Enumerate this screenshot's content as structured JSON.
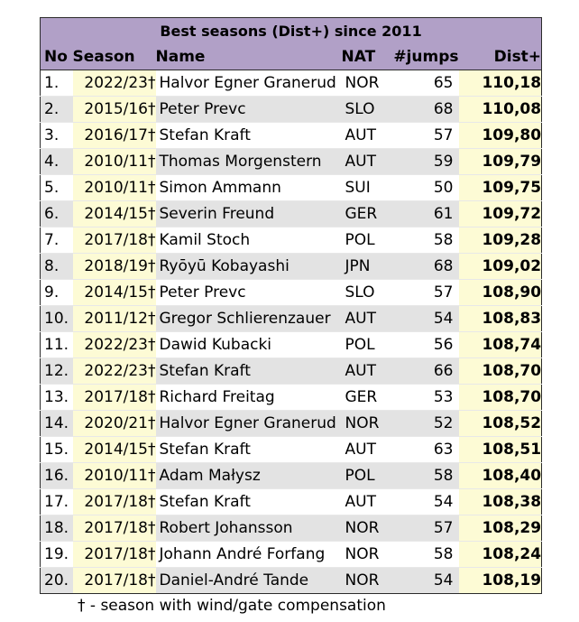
{
  "title": "Best seasons (Dist+) since 2011",
  "headers": {
    "no": "No",
    "season": "Season",
    "name": "Name",
    "nat": "NAT",
    "jumps": "#jumps",
    "dist": "Dist+"
  },
  "rows": [
    {
      "no": "1.",
      "season": "2022/23†",
      "name": "Halvor Egner Granerud",
      "nat": "NOR",
      "jumps": "65",
      "dist": "110,18"
    },
    {
      "no": "2.",
      "season": "2015/16†",
      "name": "Peter Prevc",
      "nat": "SLO",
      "jumps": "68",
      "dist": "110,08"
    },
    {
      "no": "3.",
      "season": "2016/17†",
      "name": "Stefan Kraft",
      "nat": "AUT",
      "jumps": "57",
      "dist": "109,80"
    },
    {
      "no": "4.",
      "season": "2010/11†",
      "name": "Thomas Morgenstern",
      "nat": "AUT",
      "jumps": "59",
      "dist": "109,79"
    },
    {
      "no": "5.",
      "season": "2010/11†",
      "name": "Simon Ammann",
      "nat": "SUI",
      "jumps": "50",
      "dist": "109,75"
    },
    {
      "no": "6.",
      "season": "2014/15†",
      "name": "Severin Freund",
      "nat": "GER",
      "jumps": "61",
      "dist": "109,72"
    },
    {
      "no": "7.",
      "season": "2017/18†",
      "name": "Kamil Stoch",
      "nat": "POL",
      "jumps": "58",
      "dist": "109,28"
    },
    {
      "no": "8.",
      "season": "2018/19†",
      "name": "Ryōyū Kobayashi",
      "nat": "JPN",
      "jumps": "68",
      "dist": "109,02"
    },
    {
      "no": "9.",
      "season": "2014/15†",
      "name": "Peter Prevc",
      "nat": "SLO",
      "jumps": "57",
      "dist": "108,90"
    },
    {
      "no": "10.",
      "season": "2011/12†",
      "name": "Gregor Schlierenzauer",
      "nat": "AUT",
      "jumps": "54",
      "dist": "108,83"
    },
    {
      "no": "11.",
      "season": "2022/23†",
      "name": "Dawid Kubacki",
      "nat": "POL",
      "jumps": "56",
      "dist": "108,74"
    },
    {
      "no": "12.",
      "season": "2022/23†",
      "name": "Stefan Kraft",
      "nat": "AUT",
      "jumps": "66",
      "dist": "108,70"
    },
    {
      "no": "13.",
      "season": "2017/18†",
      "name": "Richard Freitag",
      "nat": "GER",
      "jumps": "53",
      "dist": "108,70"
    },
    {
      "no": "14.",
      "season": "2020/21†",
      "name": "Halvor Egner Granerud",
      "nat": "NOR",
      "jumps": "52",
      "dist": "108,52"
    },
    {
      "no": "15.",
      "season": "2014/15†",
      "name": "Stefan Kraft",
      "nat": "AUT",
      "jumps": "63",
      "dist": "108,51"
    },
    {
      "no": "16.",
      "season": "2010/11†",
      "name": "Adam Małysz",
      "nat": "POL",
      "jumps": "58",
      "dist": "108,40"
    },
    {
      "no": "17.",
      "season": "2017/18†",
      "name": "Stefan Kraft",
      "nat": "AUT",
      "jumps": "54",
      "dist": "108,38"
    },
    {
      "no": "18.",
      "season": "2017/18†",
      "name": "Robert Johansson",
      "nat": "NOR",
      "jumps": "57",
      "dist": "108,29"
    },
    {
      "no": "19.",
      "season": "2017/18†",
      "name": "Johann André Forfang",
      "nat": "NOR",
      "jumps": "58",
      "dist": "108,24"
    },
    {
      "no": "20.",
      "season": "2017/18†",
      "name": "Daniel-André Tande",
      "nat": "NOR",
      "jumps": "54",
      "dist": "108,19"
    }
  ],
  "footnote": "† - season with wind/gate compensation",
  "colors": {
    "header_bg": "#b1a0c7",
    "highlight_bg": "#fdfbd5",
    "alt_row_bg": "#e3e3e3"
  }
}
